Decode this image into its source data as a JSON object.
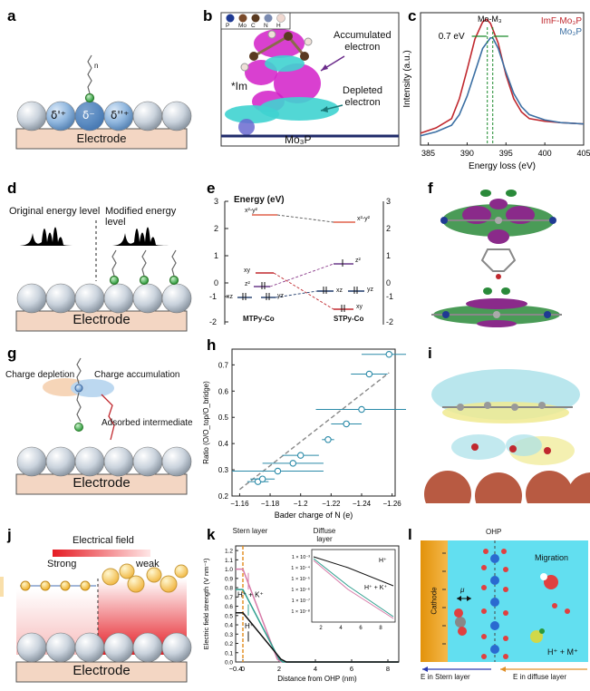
{
  "panels": {
    "a": {
      "label": "a",
      "electrode": "Electrode",
      "delta_left": "δ'⁺",
      "delta_center": "δ⁻",
      "delta_right": "δ''⁺",
      "n_label": "n"
    },
    "b": {
      "label": "b",
      "legend": [
        "P",
        "Mo",
        "C",
        "N",
        "H"
      ],
      "im": "*Im",
      "accumulated": "Accumulated electron",
      "accumulated_1": "Accumulated",
      "accumulated_2": "electron",
      "depleted": "Depleted electron",
      "depleted_1": "Depleted",
      "depleted_2": "electron",
      "material": "Mo₃P",
      "legend_colors": [
        "#1f3a93",
        "#7a4a2a",
        "#5a3a20",
        "#7a8ab0",
        "#f0d8d0"
      ]
    },
    "c": {
      "label": "c",
      "annotation": "Mo-M₃",
      "shift": "0.7 eV",
      "xlabel": "Energy loss (eV)",
      "ylabel": "Intensity (a.u.)",
      "legend": [
        "ImF-Mo₃P",
        "Mo₃P"
      ],
      "colors": [
        "#c0282e",
        "#3b6fa3"
      ]
    },
    "d": {
      "label": "d",
      "original": "Original energy level",
      "modified": "Modified energy level",
      "electrode": "Electrode"
    },
    "e": {
      "label": "e",
      "title": "Energy (eV)",
      "left_label": "MTPy-Co",
      "right_label": "STPy-Co",
      "orbitals_left": [
        "x²-y²",
        "xy",
        "z²",
        "xz",
        "yz"
      ],
      "orbitals_right": [
        "x²-y²",
        "z²",
        "xz",
        "yz",
        "xy"
      ]
    },
    "f": {
      "label": "f"
    },
    "g": {
      "label": "g",
      "depletion": "Charge depletion",
      "accumulation": "Charge accumulation",
      "intermediate": "Adsorbed intermediate",
      "electrode": "Electrode"
    },
    "h": {
      "label": "h",
      "xlabel": "Bader charge of N (e)",
      "ylabel": "Ratio (O/O_top/O_bridge)"
    },
    "i": {
      "label": "i"
    },
    "j": {
      "label": "j",
      "field": "Electrical field",
      "strong": "Strong",
      "weak": "weak",
      "electrode": "Electrode"
    },
    "k": {
      "label": "k",
      "stern": "Stern layer",
      "diffuse": "Diffuse layer",
      "ylabel": "Electric field strength (V nm⁻¹)",
      "xlabel": "Distance from OHP (nm)",
      "hk_label": "H⁺ + K⁺",
      "h_label": "H⁺",
      "inset_h": "H⁺",
      "inset_hk": "H⁺ + K⁺"
    },
    "l": {
      "label": "l",
      "cathode": "Cathode",
      "ohp": "OHP",
      "migration": "Migration",
      "ions": "H⁺ + M⁺",
      "mu": "μ",
      "e_stern": "E in Stern layer",
      "e_diffuse": "E in diffuse layer"
    }
  },
  "chart_data": [
    {
      "type": "line",
      "panel": "c",
      "xlabel": "Energy loss (eV)",
      "ylabel": "Intensity (a.u.)",
      "xlim": [
        384,
        405
      ],
      "xticks": [
        385,
        390,
        395,
        400,
        405
      ],
      "series": [
        {
          "name": "ImF-Mo₃P",
          "x": [
            384,
            386,
            388,
            389,
            390,
            391,
            392,
            392.5,
            393,
            394,
            395,
            396,
            397,
            398,
            400,
            402,
            405
          ],
          "values": [
            0.14,
            0.18,
            0.25,
            0.4,
            0.62,
            0.85,
            0.98,
            1.0,
            0.97,
            0.82,
            0.58,
            0.4,
            0.3,
            0.25,
            0.23,
            0.22,
            0.21
          ]
        },
        {
          "name": "Mo₃P",
          "x": [
            384,
            386,
            388,
            389,
            390,
            391,
            392,
            393,
            393.3,
            394,
            395,
            396,
            397,
            398,
            400,
            402,
            405
          ],
          "values": [
            0.12,
            0.15,
            0.2,
            0.28,
            0.42,
            0.6,
            0.78,
            0.86,
            0.86,
            0.78,
            0.6,
            0.44,
            0.34,
            0.28,
            0.24,
            0.22,
            0.21
          ]
        }
      ]
    },
    {
      "type": "scatter",
      "panel": "h",
      "xlabel": "Bader charge of N (e)",
      "ylabel": "Ratio (O/O_top/O_bridge)",
      "xlim": [
        -1.155,
        -1.262
      ],
      "ylim": [
        0.2,
        0.76
      ],
      "xticks": [
        -1.16,
        -1.18,
        -1.2,
        -1.22,
        -1.24,
        -1.26
      ],
      "yticks": [
        0.2,
        0.3,
        0.4,
        0.5,
        0.6,
        0.7
      ],
      "points": [
        {
          "x": -1.172,
          "y": 0.255,
          "xerr": 0.007
        },
        {
          "x": -1.175,
          "y": 0.265,
          "xerr": 0.008
        },
        {
          "x": -1.185,
          "y": 0.295,
          "xerr": 0.03
        },
        {
          "x": -1.195,
          "y": 0.325,
          "xerr": 0.02
        },
        {
          "x": -1.2,
          "y": 0.355,
          "xerr": 0.012
        },
        {
          "x": -1.218,
          "y": 0.415,
          "xerr": 0.004
        },
        {
          "x": -1.23,
          "y": 0.475,
          "xerr": 0.01
        },
        {
          "x": -1.24,
          "y": 0.53,
          "xerr": 0.03
        },
        {
          "x": -1.245,
          "y": 0.665,
          "xerr": 0.012
        },
        {
          "x": -1.258,
          "y": 0.74,
          "xerr": 0.018
        }
      ],
      "fit": {
        "x": [
          -1.16,
          -1.258
        ],
        "y": [
          0.225,
          0.67
        ]
      }
    },
    {
      "type": "line",
      "panel": "k",
      "xlabel": "Distance from OHP (nm)",
      "ylabel": "Electric field strength (V nm⁻¹)",
      "xlim": [
        -0.4,
        8.6
      ],
      "ylim": [
        0,
        1.25
      ],
      "xticks": [
        -0.4,
        0,
        2,
        4,
        6,
        8
      ],
      "yticks": [
        0,
        0.1,
        0.2,
        0.3,
        0.4,
        0.5,
        0.6,
        0.7,
        0.8,
        0.9,
        1.0,
        1.1,
        1.2
      ],
      "series": [
        {
          "name": "pink",
          "color": "#d77aa8",
          "x": [
            -0.4,
            0,
            0,
            1.9,
            2.1,
            8.6
          ],
          "values": [
            1.0,
            1.0,
            1.0,
            0.03,
            0.0,
            0.0
          ]
        },
        {
          "name": "teal",
          "color": "#2e9e8e",
          "x": [
            -0.4,
            0,
            0,
            2.0,
            2.2,
            8.6
          ],
          "values": [
            0.78,
            0.78,
            0.78,
            0.03,
            0.0,
            0.0
          ]
        },
        {
          "name": "black",
          "color": "#111111",
          "x": [
            -0.4,
            0,
            0,
            2.1,
            2.4,
            8.6
          ],
          "values": [
            0.53,
            0.53,
            0.53,
            0.03,
            0.0,
            0.0
          ]
        }
      ]
    }
  ]
}
